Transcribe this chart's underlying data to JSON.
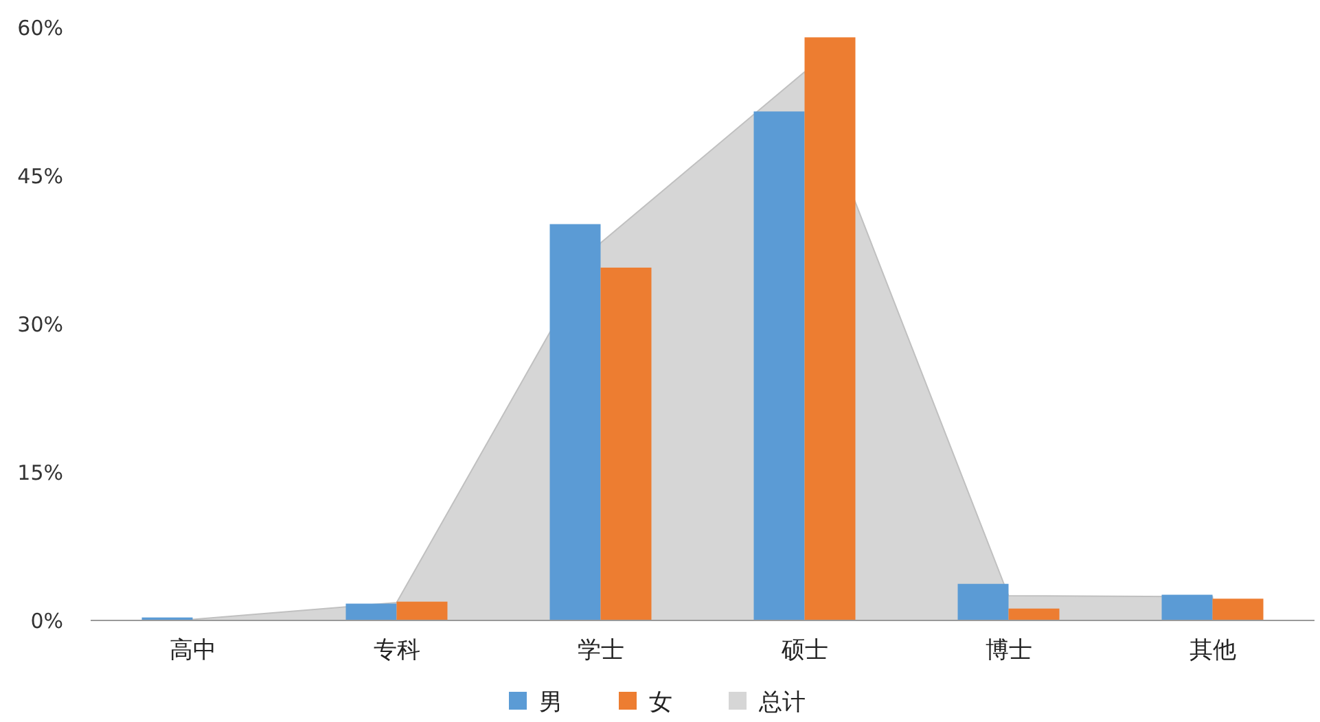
{
  "chart_data": {
    "type": "bar",
    "categories": [
      "高中",
      "专科",
      "学士",
      "硕士",
      "博士",
      "其他"
    ],
    "series": [
      {
        "name": "男",
        "color": "#5b9bd5",
        "values": [
          0.3,
          1.7,
          40.1,
          51.5,
          3.7,
          2.6
        ]
      },
      {
        "name": "女",
        "color": "#ed7d31",
        "values": [
          0,
          1.9,
          35.7,
          59,
          1.2,
          2.2
        ]
      },
      {
        "name": "总计",
        "color": "#d6d6d6",
        "type": "area",
        "values": [
          0.1,
          1.8,
          38.2,
          55.5,
          2.5,
          2.4
        ]
      }
    ],
    "ylim": [
      0,
      60
    ],
    "yticks": [
      {
        "value": 0,
        "label": "0%"
      },
      {
        "value": 15,
        "label": "15%"
      },
      {
        "value": 30,
        "label": "30%"
      },
      {
        "value": 45,
        "label": "45%"
      },
      {
        "value": 60,
        "label": "60%"
      }
    ],
    "grid": false,
    "legend": "bottom"
  }
}
